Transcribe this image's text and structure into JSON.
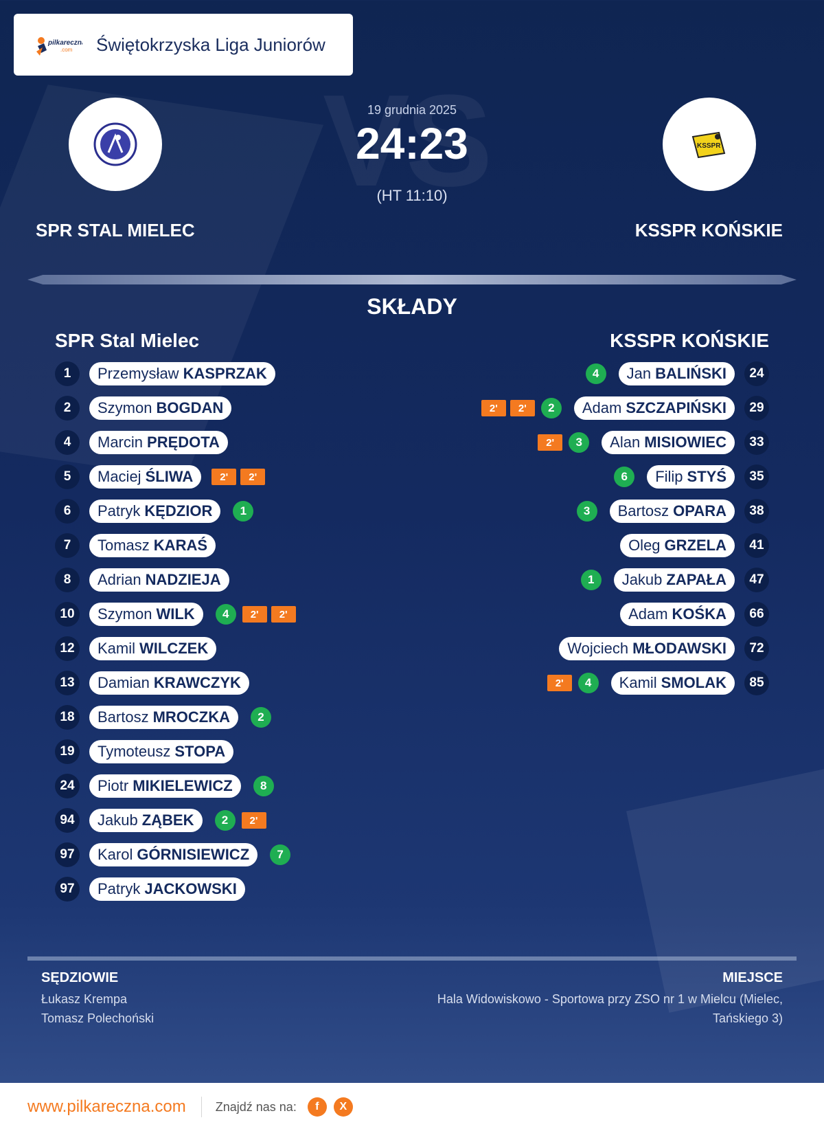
{
  "league": {
    "name": "Świętokrzyska Liga Juniorów",
    "logo_text": "pilkareczna",
    "logo_sub": ".com"
  },
  "match": {
    "date": "19 grudnia 2025",
    "score": "24:23",
    "halftime": "(HT 11:10)",
    "vs_watermark": "VS",
    "home_team": "SPR STAL MIELEC",
    "away_team": "KSSPR KOŃSKIE",
    "away_logo_text": "KSSPR"
  },
  "lineups": {
    "title": "SKŁADY",
    "home_title": "SPR Stal Mielec",
    "away_title": "KSSPR KOŃSKIE",
    "home": [
      {
        "number": "1",
        "first": "Przemysław",
        "last": "KASPRZAK",
        "goals": null,
        "suspensions": []
      },
      {
        "number": "2",
        "first": "Szymon",
        "last": "BOGDAN",
        "goals": null,
        "suspensions": []
      },
      {
        "number": "4",
        "first": "Marcin",
        "last": "PRĘDOTA",
        "goals": null,
        "suspensions": []
      },
      {
        "number": "5",
        "first": "Maciej",
        "last": "ŚLIWA",
        "goals": null,
        "suspensions": [
          "2'",
          "2'"
        ]
      },
      {
        "number": "6",
        "first": "Patryk",
        "last": "KĘDZIOR",
        "goals": "1",
        "suspensions": []
      },
      {
        "number": "7",
        "first": "Tomasz",
        "last": "KARAŚ",
        "goals": null,
        "suspensions": []
      },
      {
        "number": "8",
        "first": "Adrian",
        "last": "NADZIEJA",
        "goals": null,
        "suspensions": []
      },
      {
        "number": "10",
        "first": "Szymon",
        "last": "WILK",
        "goals": "4",
        "suspensions": [
          "2'",
          "2'"
        ]
      },
      {
        "number": "12",
        "first": "Kamil",
        "last": "WILCZEK",
        "goals": null,
        "suspensions": []
      },
      {
        "number": "13",
        "first": "Damian",
        "last": "KRAWCZYK",
        "goals": null,
        "suspensions": []
      },
      {
        "number": "18",
        "first": "Bartosz",
        "last": "MROCZKA",
        "goals": "2",
        "suspensions": []
      },
      {
        "number": "19",
        "first": "Tymoteusz",
        "last": "STOPA",
        "goals": null,
        "suspensions": []
      },
      {
        "number": "24",
        "first": "Piotr",
        "last": "MIKIELEWICZ",
        "goals": "8",
        "suspensions": []
      },
      {
        "number": "94",
        "first": "Jakub",
        "last": "ZĄBEK",
        "goals": "2",
        "suspensions": [
          "2'"
        ]
      },
      {
        "number": "97",
        "first": "Karol",
        "last": "GÓRNISIEWICZ",
        "goals": "7",
        "suspensions": []
      },
      {
        "number": "97",
        "first": "Patryk",
        "last": "JACKOWSKI",
        "goals": null,
        "suspensions": []
      }
    ],
    "away": [
      {
        "number": "24",
        "first": "Jan",
        "last": "BALIŃSKI",
        "goals": "4",
        "suspensions": []
      },
      {
        "number": "29",
        "first": "Adam",
        "last": "SZCZAPIŃSKI",
        "goals": "2",
        "suspensions": [
          "2'",
          "2'"
        ]
      },
      {
        "number": "33",
        "first": "Alan",
        "last": "MISIOWIEC",
        "goals": "3",
        "suspensions": [
          "2'"
        ]
      },
      {
        "number": "35",
        "first": "Filip",
        "last": "STYŚ",
        "goals": "6",
        "suspensions": []
      },
      {
        "number": "38",
        "first": "Bartosz",
        "last": "OPARA",
        "goals": "3",
        "suspensions": []
      },
      {
        "number": "41",
        "first": "Oleg",
        "last": "GRZELA",
        "goals": null,
        "suspensions": []
      },
      {
        "number": "47",
        "first": "Jakub",
        "last": "ZAPAŁA",
        "goals": "1",
        "suspensions": []
      },
      {
        "number": "66",
        "first": "Adam",
        "last": "KOŚKA",
        "goals": null,
        "suspensions": []
      },
      {
        "number": "72",
        "first": "Wojciech",
        "last": "MŁODAWSKI",
        "goals": null,
        "suspensions": []
      },
      {
        "number": "85",
        "first": "Kamil",
        "last": "SMOLAK",
        "goals": "4",
        "suspensions": [
          "2'"
        ]
      }
    ]
  },
  "officials": {
    "title": "SĘDZIOWIE",
    "referees": [
      "Łukasz Krempa",
      "Tomasz Polechoński"
    ]
  },
  "venue": {
    "title": "MIEJSCE",
    "lines": [
      "Hala Widowiskowo - Sportowa przy ZSO nr 1 w Mielcu (Mielec,",
      "Tańskiego 3)"
    ]
  },
  "footer": {
    "url": "www.pilkareczna.com",
    "find_us": "Znajdź nas na:",
    "socials": [
      {
        "icon": "facebook-icon",
        "glyph": "f"
      },
      {
        "icon": "x-icon",
        "glyph": "X"
      }
    ]
  },
  "colors": {
    "accent_orange": "#f47a20",
    "goal_green": "#1fae52",
    "navy": "#142a5e"
  }
}
